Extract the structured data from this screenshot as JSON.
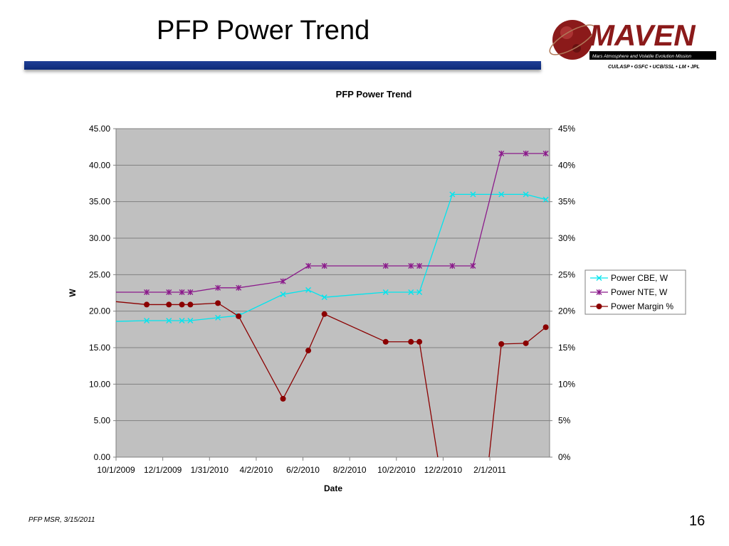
{
  "slide": {
    "title": "PFP Power Trend",
    "footer": "PFP MSR, 3/15/2011",
    "page_number": "16"
  },
  "logo": {
    "name": "MAVEN",
    "subtitle": "Mars Atmosphere and Volatile Evolution Mission",
    "partners": "CU/LASP • GSFC • UCB/SSL • LM • JPL"
  },
  "colors": {
    "title_bar": "#1f3f95",
    "plot_bg": "#c0c0c0",
    "cbe": "#00e5ee",
    "nte": "#8b1a8b",
    "margin": "#8b0000"
  },
  "chart_data": {
    "type": "line",
    "title": "PFP Power Trend",
    "xlabel": "Date",
    "ylabel": "W",
    "y2label": "",
    "ylim": [
      0,
      45
    ],
    "y2lim": [
      0,
      45
    ],
    "xlim": [
      "2009-10-01",
      "2011-04-20"
    ],
    "x_ticks": [
      "10/1/2009",
      "12/1/2009",
      "1/31/2010",
      "4/2/2010",
      "6/2/2010",
      "8/2/2010",
      "10/2/2010",
      "12/2/2010",
      "2/1/2011"
    ],
    "y_ticks": [
      "0.00",
      "5.00",
      "10.00",
      "15.00",
      "20.00",
      "25.00",
      "30.00",
      "35.00",
      "40.00",
      "45.00"
    ],
    "y2_ticks": [
      "0%",
      "5%",
      "10%",
      "15%",
      "20%",
      "25%",
      "30%",
      "35%",
      "40%",
      "45%"
    ],
    "grid": true,
    "legend": "right",
    "series": [
      {
        "name": "Power CBE, W",
        "axis": "left",
        "marker": "x",
        "color": "#00e5ee",
        "x": [
          "2009-10-01",
          "2009-11-10",
          "2009-12-09",
          "2009-12-26",
          "2010-01-06",
          "2010-02-11",
          "2010-03-10",
          "2010-05-07",
          "2010-06-09",
          "2010-06-30",
          "2010-09-18",
          "2010-10-21",
          "2010-11-01",
          "2010-12-14",
          "2011-01-10",
          "2011-02-16",
          "2011-03-20",
          "2011-04-15"
        ],
        "values": [
          18.6,
          18.7,
          18.7,
          18.7,
          18.7,
          19.1,
          19.4,
          22.3,
          22.9,
          21.9,
          22.6,
          22.6,
          22.6,
          36.0,
          36.0,
          36.0,
          36.0,
          35.3
        ]
      },
      {
        "name": "Power NTE, W",
        "axis": "left",
        "marker": "asterisk",
        "color": "#8b1a8b",
        "x": [
          "2009-10-01",
          "2009-11-10",
          "2009-12-09",
          "2009-12-26",
          "2010-01-06",
          "2010-02-11",
          "2010-03-10",
          "2010-05-07",
          "2010-06-09",
          "2010-06-30",
          "2010-09-18",
          "2010-10-21",
          "2010-11-01",
          "2010-12-14",
          "2011-01-10",
          "2011-02-16",
          "2011-03-20",
          "2011-04-15"
        ],
        "values": [
          22.6,
          22.6,
          22.6,
          22.6,
          22.6,
          23.2,
          23.2,
          24.1,
          26.2,
          26.2,
          26.2,
          26.2,
          26.2,
          26.2,
          26.2,
          41.6,
          41.6,
          41.6
        ]
      },
      {
        "name": "Power Margin %",
        "axis": "right",
        "marker": "circle",
        "color": "#8b0000",
        "x": [
          "2009-10-01",
          "2009-11-10",
          "2009-12-09",
          "2009-12-26",
          "2010-01-06",
          "2010-02-11",
          "2010-03-10",
          "2010-05-07",
          "2010-06-09",
          "2010-06-30",
          "2010-09-18",
          "2010-10-21",
          "2010-11-01",
          "2011-02-16",
          "2011-03-20",
          "2011-04-15"
        ],
        "values": [
          21.3,
          20.9,
          20.9,
          20.9,
          20.9,
          21.1,
          19.3,
          8.0,
          14.6,
          19.6,
          15.8,
          15.8,
          15.8,
          15.5,
          15.6,
          17.8
        ]
      }
    ]
  }
}
